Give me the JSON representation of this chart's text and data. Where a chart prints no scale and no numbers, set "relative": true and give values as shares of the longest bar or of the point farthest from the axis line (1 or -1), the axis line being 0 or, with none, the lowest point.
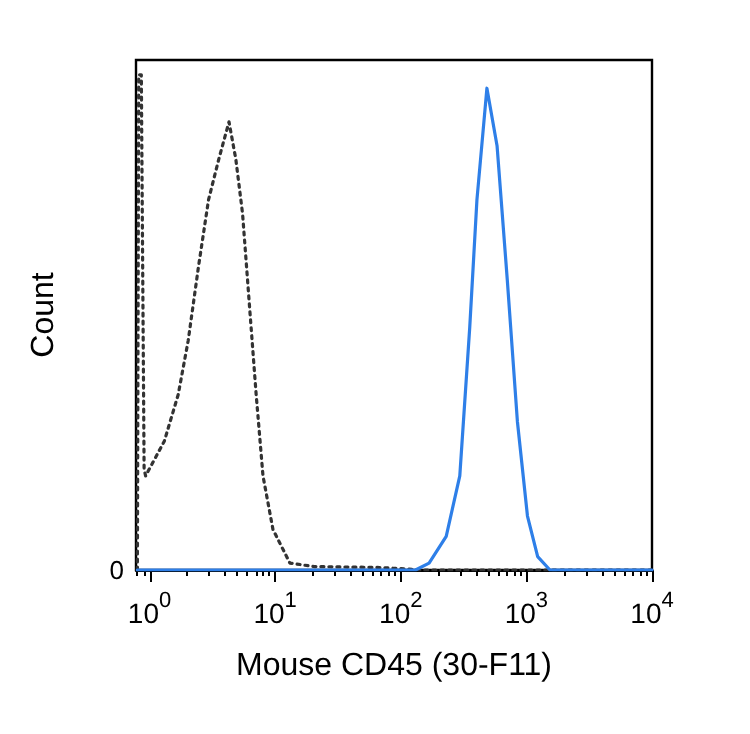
{
  "chart_data": {
    "type": "line",
    "xlabel": "Mouse CD45 (30-F11)",
    "ylabel": "Count",
    "relative": true,
    "log": "x",
    "xlim": [
      0.78,
      10000
    ],
    "xticks": [
      {
        "value": 1,
        "label": "10$^{0}$"
      },
      {
        "value": 10,
        "label": "10$^{1}$"
      },
      {
        "value": 100,
        "label": "10$^{2}$"
      },
      {
        "value": 1000,
        "label": "10$^{3}$"
      },
      {
        "value": 10000,
        "label": "10$^{4}$"
      }
    ],
    "annotations": [
      "0"
    ],
    "grid": false,
    "marker": "none",
    "series": [
      {
        "color": "#333333",
        "line_style": "dotted",
        "x": [
          0.8,
          0.82,
          0.86,
          0.905,
          0.93,
          1.31,
          1.69,
          2.03,
          2.45,
          2.95,
          3.56,
          4.29,
          4.86,
          5.5,
          6.2,
          7.06,
          8.0,
          9.6,
          13.1,
          20.3,
          70,
          148,
          10000
        ],
        "values": [
          0,
          1.0,
          1.0,
          0.204,
          0.19,
          0.26,
          0.354,
          0.463,
          0.612,
          0.748,
          0.83,
          0.905,
          0.83,
          0.72,
          0.544,
          0.354,
          0.19,
          0.082,
          0.014,
          0.007,
          0.005,
          0,
          0
        ]
      },
      {
        "color": "#2e7fe8",
        "line_style": "solid",
        "x": [
          0.8,
          131,
          168,
          230,
          295,
          354,
          404,
          485,
          584,
          705,
          848,
          1020,
          1230,
          1540,
          10000
        ],
        "values": [
          0,
          0,
          0.014,
          0.068,
          0.19,
          0.49,
          0.748,
          0.973,
          0.857,
          0.585,
          0.3,
          0.109,
          0.027,
          0,
          0
        ]
      }
    ]
  }
}
